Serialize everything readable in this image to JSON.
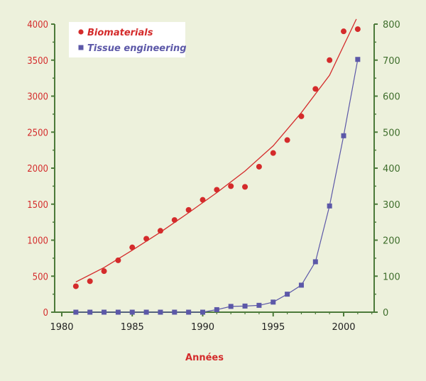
{
  "chart_data": {
    "type": "scatter",
    "title": "",
    "xlabel": "Années",
    "x_ticks": [
      1980,
      1985,
      1990,
      1995,
      2000
    ],
    "xlim": [
      1980,
      2002
    ],
    "left_axis": {
      "ticks": [
        0,
        500,
        1000,
        1500,
        2000,
        2500,
        3000,
        3500,
        4000
      ],
      "ylim": [
        0,
        4000
      ]
    },
    "right_axis": {
      "ticks": [
        0,
        100,
        200,
        300,
        400,
        500,
        600,
        700,
        800
      ],
      "ylim": [
        0,
        800
      ]
    },
    "series": [
      {
        "name": "Biomaterials",
        "axis": "left",
        "marker": "circle",
        "color": "#d42b2b",
        "x": [
          1981,
          1982,
          1983,
          1984,
          1985,
          1986,
          1987,
          1988,
          1989,
          1990,
          1991,
          1992,
          1993,
          1994,
          1995,
          1996,
          1997,
          1998,
          1999,
          2000,
          2001
        ],
        "y": [
          360,
          430,
          570,
          720,
          900,
          1020,
          1130,
          1280,
          1420,
          1560,
          1700,
          1750,
          1740,
          2020,
          2210,
          2390,
          2720,
          3100,
          3500,
          3900,
          3930
        ],
        "trend_x": [
          1981,
          1983,
          1985,
          1987,
          1989,
          1991,
          1993,
          1995,
          1997,
          1999,
          2000,
          2000.9
        ],
        "trend_y": [
          420,
          620,
          860,
          1110,
          1380,
          1660,
          1960,
          2310,
          2770,
          3290,
          3700,
          4070
        ]
      },
      {
        "name": "Tissue engineering",
        "axis": "right",
        "marker": "square",
        "color": "#5c58a8",
        "x": [
          1981,
          1982,
          1983,
          1984,
          1985,
          1986,
          1987,
          1988,
          1989,
          1990,
          1991,
          1992,
          1993,
          1994,
          1995,
          1996,
          1997,
          1998,
          1999,
          2000,
          2001
        ],
        "y": [
          0,
          0,
          0,
          0,
          0,
          0,
          0,
          0,
          0,
          0,
          7,
          16,
          17,
          19,
          28,
          50,
          75,
          140,
          295,
          490,
          702
        ]
      }
    ],
    "colors": {
      "left_axis": "#d42b2b",
      "right_axis": "#3f6e2c",
      "background": "#edf1dc",
      "grid_axis": "#4c7a3a"
    }
  }
}
